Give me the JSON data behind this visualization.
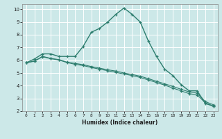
{
  "title": "",
  "xlabel": "Humidex (Indice chaleur)",
  "bg_color": "#cce8e8",
  "grid_color": "#ffffff",
  "line_color": "#2d7d6e",
  "xlim": [
    -0.5,
    23.5
  ],
  "ylim": [
    2,
    10.4
  ],
  "xticks": [
    0,
    1,
    2,
    3,
    4,
    5,
    6,
    7,
    8,
    9,
    10,
    11,
    12,
    13,
    14,
    15,
    16,
    17,
    18,
    19,
    20,
    21,
    22,
    23
  ],
  "yticks": [
    2,
    3,
    4,
    5,
    6,
    7,
    8,
    9,
    10
  ],
  "line1_x": [
    0,
    1,
    2,
    3,
    4,
    5,
    6,
    7,
    8,
    9,
    10,
    11,
    12,
    13,
    14,
    15,
    16,
    17,
    18,
    19,
    20,
    21,
    22,
    23
  ],
  "line1_y": [
    5.8,
    6.1,
    6.5,
    6.5,
    6.3,
    6.3,
    6.3,
    7.1,
    8.2,
    8.5,
    9.0,
    9.6,
    10.1,
    9.6,
    9.0,
    7.5,
    6.3,
    5.3,
    4.8,
    4.1,
    3.6,
    3.6,
    2.6,
    2.4
  ],
  "line2_x": [
    0,
    1,
    2,
    3,
    4,
    5,
    6,
    7,
    8,
    9,
    10,
    11,
    12,
    13,
    14,
    15,
    16,
    17,
    18,
    19,
    20,
    21,
    22,
    23
  ],
  "line2_y": [
    5.8,
    5.95,
    6.3,
    6.15,
    6.05,
    5.85,
    5.75,
    5.65,
    5.5,
    5.38,
    5.25,
    5.15,
    5.0,
    4.88,
    4.75,
    4.55,
    4.35,
    4.15,
    3.95,
    3.72,
    3.52,
    3.42,
    2.75,
    2.5
  ],
  "line3_x": [
    0,
    1,
    2,
    3,
    4,
    5,
    6,
    7,
    8,
    9,
    10,
    11,
    12,
    13,
    14,
    15,
    16,
    17,
    18,
    19,
    20,
    21,
    22,
    23
  ],
  "line3_y": [
    5.8,
    5.92,
    6.28,
    6.12,
    6.02,
    5.82,
    5.68,
    5.58,
    5.43,
    5.3,
    5.18,
    5.05,
    4.92,
    4.8,
    4.65,
    4.45,
    4.25,
    4.05,
    3.82,
    3.6,
    3.38,
    3.28,
    2.65,
    2.4
  ]
}
